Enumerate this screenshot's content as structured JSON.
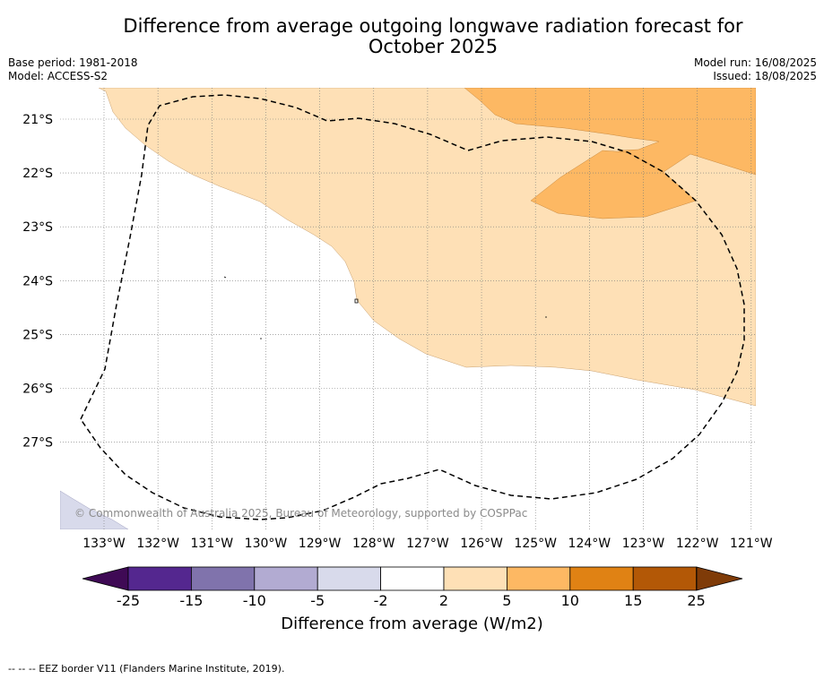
{
  "title_line1": "Difference from average outgoing longwave radiation forecast for",
  "title_line2": "October 2025",
  "base_period": "Base period: 1981-2018",
  "model": "Model: ACCESS-S2",
  "model_run": "Model run: 16/08/2025",
  "issued": "Issued: 18/08/2025",
  "copyright": "© Commonwealth of Australia 2025, Bureau of Meteorology, supported by COSPPac",
  "footnote": "-- -- -- EEZ border V11 (Flanders Marine Institute, 2019).",
  "colorbar_label": "Difference from average (W/m2)",
  "chart_data": {
    "type": "map",
    "lon_ticks": [
      "133°W",
      "132°W",
      "131°W",
      "130°W",
      "129°W",
      "128°W",
      "127°W",
      "126°W",
      "125°W",
      "124°W",
      "123°W",
      "122°W",
      "121°W"
    ],
    "lat_ticks": [
      "21°S",
      "22°S",
      "23°S",
      "24°S",
      "25°S",
      "26°S",
      "27°S"
    ],
    "lon_values": [
      -133,
      -132,
      -131,
      -130,
      -129,
      -128,
      -127,
      -126,
      -125,
      -124,
      -123,
      -122,
      -121
    ],
    "lat_values": [
      -21,
      -22,
      -23,
      -24,
      -25,
      -26,
      -27
    ],
    "grid": true,
    "colorbar": {
      "levels": [
        "-25",
        "-15",
        "-10",
        "-5",
        "-2",
        "2",
        "5",
        "10",
        "15",
        "25"
      ],
      "colors": [
        "#3f0a55",
        "#54278f",
        "#8073ac",
        "#b2abd2",
        "#d8daeb",
        "#ffffff",
        "#fee0b6",
        "#fdb863",
        "#e08214",
        "#b35806",
        "#7f3b08"
      ]
    },
    "fields": [
      {
        "range": "2 to 5",
        "color": "#fee0b6"
      },
      {
        "range": "5 to 10",
        "color": "#fdb863"
      },
      {
        "range": "-5 to -2",
        "color": "#d8daeb"
      }
    ]
  }
}
